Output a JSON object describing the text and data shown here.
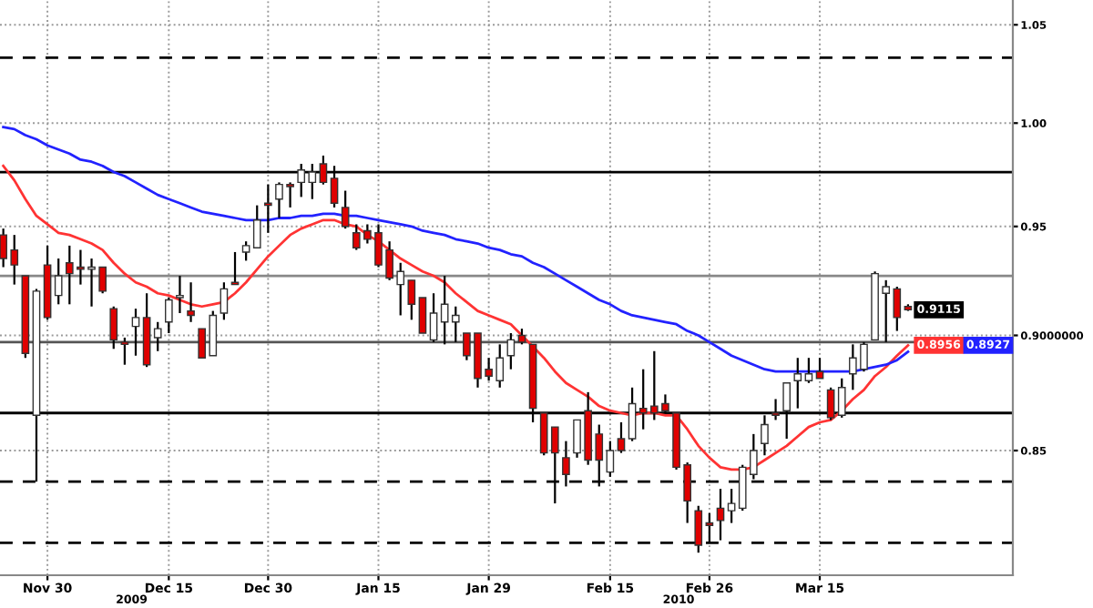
{
  "chart_data": {
    "type": "candlestick",
    "categories": [
      null,
      null,
      null,
      null,
      "Nov 30",
      null,
      null,
      null,
      null,
      null,
      null,
      null,
      null,
      null,
      null,
      "Dec 15",
      null,
      null,
      null,
      null,
      null,
      null,
      null,
      null,
      "Dec 30",
      null,
      null,
      null,
      null,
      null,
      null,
      null,
      null,
      null,
      "Jan 15",
      null,
      null,
      null,
      null,
      null,
      null,
      null,
      null,
      null,
      "Jan 29",
      null,
      null,
      null,
      null,
      null,
      null,
      null,
      null,
      null,
      null,
      "Feb 15",
      null,
      null,
      null,
      null,
      null,
      null,
      null,
      null,
      "Feb 26",
      null,
      null,
      null,
      null,
      null,
      null,
      null,
      null,
      null,
      "Mar 15",
      null,
      null,
      null,
      null,
      null,
      null,
      null,
      null
    ],
    "ohlc": [
      [
        0.946,
        0.949,
        0.931,
        0.935
      ],
      [
        0.939,
        0.946,
        0.923,
        0.932
      ],
      [
        0.927,
        0.927,
        0.89,
        0.892
      ],
      [
        0.865,
        0.921,
        0.837,
        0.92
      ],
      [
        0.932,
        0.941,
        0.907,
        0.908
      ],
      [
        0.918,
        0.935,
        0.914,
        0.927
      ],
      [
        0.933,
        0.941,
        0.914,
        0.928
      ],
      [
        0.931,
        0.939,
        0.923,
        0.93
      ],
      [
        0.93,
        0.935,
        0.913,
        0.931
      ],
      [
        0.931,
        0.931,
        0.919,
        0.92
      ],
      [
        0.912,
        0.913,
        0.894,
        0.898
      ],
      [
        0.897,
        0.899,
        0.887,
        0.896
      ],
      [
        0.904,
        0.912,
        0.891,
        0.908
      ],
      [
        0.908,
        0.919,
        0.886,
        0.887
      ],
      [
        0.899,
        0.906,
        0.893,
        0.903
      ],
      [
        0.906,
        0.917,
        0.901,
        0.916
      ],
      [
        0.917,
        0.927,
        0.91,
        0.918
      ],
      [
        0.911,
        0.924,
        0.906,
        0.909
      ],
      [
        0.903,
        0.903,
        0.89,
        0.89
      ],
      [
        0.891,
        0.911,
        0.891,
        0.909
      ],
      [
        0.91,
        0.924,
        0.907,
        0.921
      ],
      [
        0.924,
        0.938,
        0.923,
        0.923
      ],
      [
        0.938,
        0.943,
        0.934,
        0.941
      ],
      [
        0.94,
        0.96,
        0.94,
        0.953
      ],
      [
        0.961,
        0.97,
        0.947,
        0.96
      ],
      [
        0.963,
        0.971,
        0.954,
        0.97
      ],
      [
        0.97,
        0.971,
        0.959,
        0.969
      ],
      [
        0.971,
        0.98,
        0.964,
        0.977
      ],
      [
        0.971,
        0.98,
        0.963,
        0.976
      ],
      [
        0.98,
        0.984,
        0.97,
        0.971
      ],
      [
        0.973,
        0.979,
        0.959,
        0.961
      ],
      [
        0.959,
        0.967,
        0.949,
        0.95
      ],
      [
        0.947,
        0.951,
        0.939,
        0.94
      ],
      [
        0.948,
        0.951,
        0.942,
        0.944
      ],
      [
        0.947,
        0.951,
        0.931,
        0.932
      ],
      [
        0.939,
        0.943,
        0.925,
        0.926
      ],
      [
        0.923,
        0.933,
        0.909,
        0.929
      ],
      [
        0.925,
        0.925,
        0.907,
        0.914
      ],
      [
        0.917,
        0.917,
        0.901,
        0.901
      ],
      [
        0.898,
        0.919,
        0.897,
        0.91
      ],
      [
        0.906,
        0.927,
        0.896,
        0.914
      ],
      [
        0.906,
        0.913,
        0.897,
        0.909
      ],
      [
        0.901,
        0.901,
        0.889,
        0.891
      ],
      [
        0.901,
        0.901,
        0.877,
        0.881
      ],
      [
        0.885,
        0.89,
        0.88,
        0.882
      ],
      [
        0.88,
        0.896,
        0.877,
        0.89
      ],
      [
        0.891,
        0.901,
        0.885,
        0.898
      ],
      [
        0.9,
        0.903,
        0.896,
        0.897
      ],
      [
        0.896,
        0.896,
        0.862,
        0.868
      ],
      [
        0.866,
        0.866,
        0.848,
        0.849
      ],
      [
        0.86,
        0.86,
        0.828,
        0.849
      ],
      [
        0.847,
        0.854,
        0.835,
        0.84
      ],
      [
        0.849,
        0.863,
        0.847,
        0.863
      ],
      [
        0.867,
        0.875,
        0.844,
        0.846
      ],
      [
        0.857,
        0.861,
        0.835,
        0.846
      ],
      [
        0.841,
        0.854,
        0.839,
        0.85
      ],
      [
        0.855,
        0.862,
        0.849,
        0.85
      ],
      [
        0.855,
        0.877,
        0.854,
        0.87
      ],
      [
        0.868,
        0.885,
        0.859,
        0.866
      ],
      [
        0.869,
        0.893,
        0.863,
        0.866
      ],
      [
        0.87,
        0.874,
        0.866,
        0.867
      ],
      [
        0.866,
        0.866,
        0.842,
        0.843
      ],
      [
        0.844,
        0.845,
        0.82,
        0.829
      ],
      [
        0.825,
        0.827,
        0.808,
        0.811
      ],
      [
        0.82,
        0.824,
        0.812,
        0.819
      ],
      [
        0.826,
        0.834,
        0.813,
        0.821
      ],
      [
        0.825,
        0.834,
        0.82,
        0.828
      ],
      [
        0.826,
        0.844,
        0.825,
        0.843
      ],
      [
        0.84,
        0.857,
        0.838,
        0.85
      ],
      [
        0.853,
        0.865,
        0.848,
        0.861
      ],
      [
        0.866,
        0.872,
        0.863,
        0.865
      ],
      [
        0.867,
        0.879,
        0.855,
        0.879
      ],
      [
        0.88,
        0.89,
        0.868,
        0.883
      ],
      [
        0.88,
        0.89,
        0.879,
        0.883
      ],
      [
        0.884,
        0.89,
        0.881,
        0.881
      ],
      [
        0.876,
        0.877,
        0.863,
        0.864
      ],
      [
        0.865,
        0.881,
        0.864,
        0.877
      ],
      [
        0.883,
        0.896,
        0.876,
        0.89
      ],
      [
        0.885,
        0.897,
        0.884,
        0.896
      ],
      [
        0.898,
        0.929,
        0.898,
        0.928
      ],
      [
        0.919,
        0.925,
        0.897,
        0.922
      ],
      [
        0.921,
        0.922,
        0.902,
        0.908
      ],
      [
        0.913,
        0.914,
        0.911,
        0.9115
      ]
    ],
    "series": [
      {
        "type": "line",
        "color": "#ff3333",
        "values": [
          0.979,
          0.972,
          0.963,
          0.955,
          0.951,
          0.947,
          0.946,
          0.944,
          0.942,
          0.939,
          0.933,
          0.928,
          0.924,
          0.922,
          0.919,
          0.918,
          0.916,
          0.914,
          0.913,
          0.914,
          0.915,
          0.919,
          0.924,
          0.93,
          0.936,
          0.941,
          0.946,
          0.949,
          0.951,
          0.953,
          0.953,
          0.951,
          0.95,
          0.946,
          0.943,
          0.939,
          0.935,
          0.932,
          0.929,
          0.927,
          0.924,
          0.919,
          0.915,
          0.911,
          0.909,
          0.907,
          0.905,
          0.9,
          0.895,
          0.89,
          0.884,
          0.879,
          0.876,
          0.873,
          0.869,
          0.867,
          0.866,
          0.865,
          0.866,
          0.866,
          0.865,
          0.865,
          0.859,
          0.852,
          0.847,
          0.843,
          0.842,
          0.842,
          0.843,
          0.846,
          0.849,
          0.852,
          0.856,
          0.86,
          0.862,
          0.863,
          0.867,
          0.872,
          0.876,
          0.882,
          0.886,
          0.891,
          0.8956
        ]
      },
      {
        "type": "line",
        "color": "#2222ff",
        "values": [
          0.998,
          0.997,
          0.994,
          0.992,
          0.989,
          0.987,
          0.985,
          0.982,
          0.981,
          0.979,
          0.976,
          0.974,
          0.971,
          0.968,
          0.965,
          0.963,
          0.961,
          0.959,
          0.957,
          0.956,
          0.955,
          0.954,
          0.953,
          0.953,
          0.953,
          0.954,
          0.954,
          0.955,
          0.955,
          0.956,
          0.956,
          0.955,
          0.955,
          0.954,
          0.953,
          0.952,
          0.951,
          0.95,
          0.948,
          0.947,
          0.946,
          0.944,
          0.943,
          0.942,
          0.94,
          0.939,
          0.937,
          0.936,
          0.933,
          0.931,
          0.928,
          0.925,
          0.922,
          0.919,
          0.916,
          0.914,
          0.911,
          0.909,
          0.908,
          0.907,
          0.906,
          0.905,
          0.902,
          0.9,
          0.897,
          0.894,
          0.891,
          0.889,
          0.887,
          0.885,
          0.884,
          0.884,
          0.884,
          0.884,
          0.884,
          0.884,
          0.884,
          0.884,
          0.885,
          0.886,
          0.887,
          0.889,
          0.8927
        ]
      }
    ],
    "log": true,
    "ylim": [
      0.799,
      1.063
    ],
    "yticks": [
      {
        "value": 0.85,
        "label": "0.85"
      },
      {
        "value": 0.9,
        "label": "0.9000000"
      },
      {
        "value": 0.95,
        "label": "0.95"
      },
      {
        "value": 1.0,
        "label": "1.00"
      },
      {
        "value": 1.05,
        "label": "1.05"
      }
    ],
    "grid": true,
    "ref_lines": [
      {
        "axis": "y",
        "value": 1.033,
        "color": "#000000",
        "line_style": "dashed"
      },
      {
        "axis": "y",
        "value": 0.976,
        "color": "#000000",
        "line_style": "solid"
      },
      {
        "axis": "y",
        "value": 0.927,
        "color": "#888888",
        "line_style": "solid"
      },
      {
        "axis": "y",
        "value": 0.897,
        "color": "#555555",
        "line_style": "solid"
      },
      {
        "axis": "y",
        "value": 0.866,
        "color": "#000000",
        "line_style": "solid"
      },
      {
        "axis": "y",
        "value": 0.837,
        "color": "#000000",
        "line_style": "dashed"
      },
      {
        "axis": "y",
        "value": 0.812,
        "color": "#000000",
        "line_style": "dashed"
      }
    ],
    "annotations": [
      "2009",
      "2010",
      {
        "text": "0.9115",
        "y": 0.9115
      },
      {
        "text": "0.8956",
        "y": 0.8956
      },
      "0.8927"
    ]
  }
}
